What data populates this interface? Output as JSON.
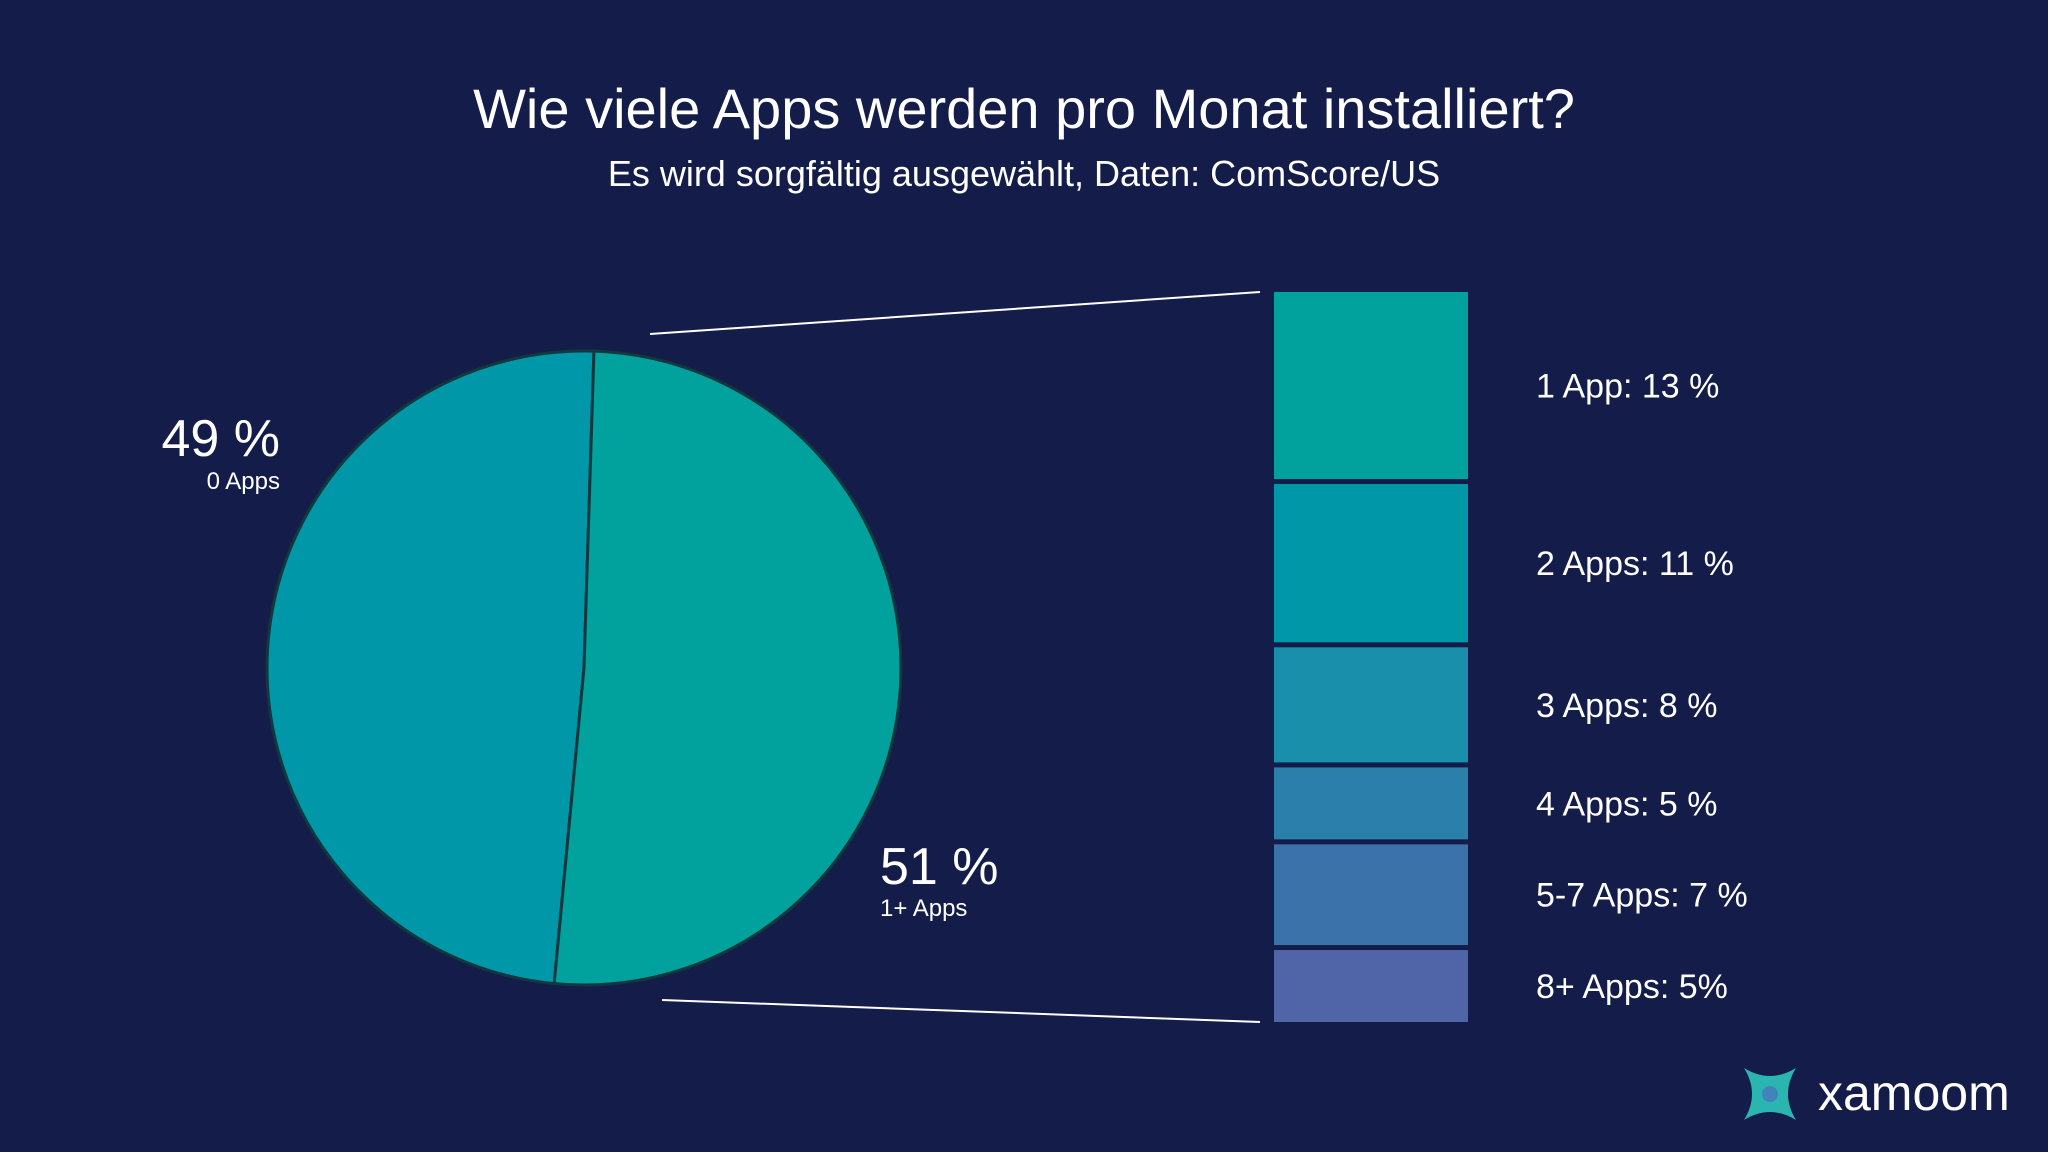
{
  "chart_data": [
    {
      "type": "pie",
      "title": "Wie viele Apps werden pro Monat installiert?",
      "subtitle": "Es wird sorgfältig ausgewählt, Daten: ComScore/US",
      "slices": [
        {
          "value": 49,
          "pct_label": "49 %",
          "label": "0 Apps",
          "color": "#0098a8"
        },
        {
          "value": 51,
          "pct_label": "51 %",
          "label": "1+ Apps",
          "color": "#01a19e"
        }
      ]
    },
    {
      "type": "bar",
      "orientation": "stacked-vertical",
      "categories": [
        "1 App",
        "2 Apps",
        "3 Apps",
        "4 Apps",
        "5-7 Apps",
        "8+ Apps"
      ],
      "values": [
        13,
        11,
        8,
        5,
        7,
        5
      ],
      "labels": [
        "1 App: 13 %",
        "2 Apps: 11 %",
        "3 Apps: 8 %",
        "4 Apps: 5 %",
        "5-7 Apps: 7 %",
        "8+ Apps: 5%"
      ],
      "colors": [
        "#01a19e",
        "#0098a8",
        "#1a8fac",
        "#2a7fab",
        "#3c72aa",
        "#5064a8"
      ]
    }
  ],
  "theme": {
    "background": "#141c4a",
    "text": "#ffffff",
    "line": "#ffffff"
  },
  "logo": {
    "text": "xamoom",
    "icon": "xamoom-logo-icon"
  }
}
